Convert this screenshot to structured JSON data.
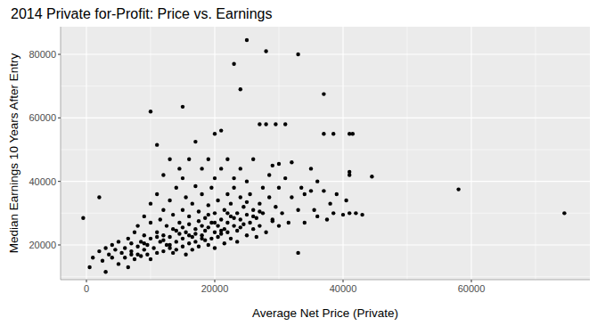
{
  "chart_data": {
    "type": "scatter",
    "title": "2014 Private for-Profit: Price vs. Earnings",
    "x_label": "Average Net Price (Private)",
    "y_label": "Median Earnings 10 Years After Entry",
    "color": "#000000",
    "marker": "circle",
    "grid": true,
    "xlim": [
      -4028,
      78472
    ],
    "ylim": [
      9060,
      88700
    ],
    "xticks": [
      0,
      20000,
      40000,
      60000
    ],
    "yticks": [
      20000,
      40000,
      60000,
      80000
    ],
    "x": [
      2000,
      2500,
      3000,
      3500,
      4000,
      4000,
      4500,
      5000,
      5000,
      5500,
      6000,
      6000,
      6500,
      6500,
      7000,
      7000,
      7500,
      7500,
      8000,
      8000,
      8000,
      8500,
      8500,
      9000,
      9000,
      9000,
      9500,
      9500,
      10000,
      10000,
      10000,
      10000,
      10500,
      11000,
      11000,
      11000,
      11500,
      11500,
      12000,
      12000,
      12000,
      12000,
      12500,
      12500,
      13000,
      13000,
      13000,
      13000,
      13500,
      13500,
      13500,
      14000,
      14000,
      14000,
      14500,
      14500,
      14500,
      15000,
      15000,
      15000,
      15000,
      15500,
      15500,
      15500,
      16000,
      16000,
      16000,
      16000,
      16500,
      16500,
      16500,
      17000,
      17000,
      17000,
      17000,
      17500,
      17500,
      17500,
      18000,
      18000,
      18000,
      18000,
      18500,
      18500,
      18500,
      19000,
      19000,
      19000,
      19000,
      19500,
      19500,
      19500,
      20000,
      20000,
      20000,
      20000,
      20000,
      20500,
      20500,
      20500,
      21000,
      21000,
      21000,
      21000,
      21500,
      21500,
      21500,
      22000,
      22000,
      22000,
      22000,
      22500,
      22500,
      22500,
      23000,
      23000,
      23000,
      23000,
      23500,
      23500,
      23500,
      24000,
      24000,
      24000,
      24000,
      24500,
      24500,
      25000,
      25000,
      25000,
      25000,
      25500,
      25500,
      26000,
      26000,
      26000,
      26500,
      26500,
      27000,
      27000,
      27000,
      27500,
      27500,
      28000,
      28000,
      28000,
      28500,
      28500,
      29000,
      29000,
      29500,
      29500,
      30000,
      30000,
      30000,
      30500,
      31000,
      31000,
      31500,
      32000,
      32000,
      33000,
      33000,
      33000,
      33500,
      34000,
      34000,
      35000,
      35000,
      35500,
      36000,
      36000,
      37000,
      37000,
      37000,
      37500,
      38000,
      38500,
      38500,
      39000,
      40000,
      40500,
      41000,
      41000,
      41000,
      41000,
      41500,
      42000,
      43000,
      44500,
      -500,
      1000,
      500,
      3000,
      2000,
      10000,
      15000,
      11000,
      58000,
      74500,
      12000,
      14000,
      16000,
      18000,
      20000,
      22000,
      24000,
      26000,
      9000,
      11000,
      13000,
      15000,
      17000,
      19000,
      21000,
      23000,
      25000,
      27000,
      29000,
      7000
    ],
    "values": [
      18000,
      15000,
      19000,
      17000,
      20000,
      16000,
      18500,
      14000,
      21000,
      17500,
      19000,
      16000,
      22000,
      13000,
      18000,
      20500,
      15500,
      24000,
      17000,
      19500,
      26000,
      21000,
      16500,
      18500,
      23000,
      29000,
      17000,
      20000,
      22000,
      15500,
      27000,
      33000,
      19000,
      24000,
      17500,
      36000,
      21000,
      28000,
      18000,
      23000,
      31000,
      42000,
      20000,
      26000,
      19000,
      22500,
      34000,
      47000,
      17500,
      25000,
      29500,
      21000,
      18500,
      38000,
      23500,
      27000,
      44000,
      19500,
      22000,
      31000,
      41000,
      24000,
      17000,
      35000,
      20500,
      26500,
      29000,
      47000,
      22500,
      18500,
      33000,
      25000,
      21000,
      38500,
      52500,
      27500,
      19500,
      30500,
      23000,
      26000,
      36000,
      44000,
      21500,
      28500,
      24500,
      20000,
      32500,
      25500,
      47000,
      22000,
      27000,
      38000,
      24000,
      30000,
      19000,
      41000,
      55000,
      26000,
      22500,
      34000,
      28000,
      23500,
      44000,
      56000,
      25000,
      31000,
      20500,
      27000,
      36000,
      24000,
      47000,
      29000,
      22000,
      33000,
      26000,
      38000,
      77000,
      41000,
      24500,
      30000,
      21000,
      28000,
      35000,
      69000,
      44000,
      26500,
      32000,
      23000,
      29500,
      84500,
      40000,
      27000,
      36000,
      25000,
      31000,
      47000,
      28500,
      22500,
      33000,
      58000,
      26000,
      38000,
      30000,
      81000,
      58000,
      24000,
      35000,
      42000,
      28000,
      45000,
      58000,
      32000,
      45500,
      26000,
      38000,
      30000,
      58000,
      41000,
      27000,
      35000,
      46000,
      80000,
      17500,
      31000,
      38000,
      36000,
      27000,
      37000,
      44000,
      31000,
      29000,
      40000,
      67500,
      55000,
      37000,
      28000,
      33000,
      55000,
      30000,
      36000,
      29500,
      34000,
      55000,
      43000,
      42000,
      30000,
      55000,
      30000,
      29500,
      41500,
      28500,
      16000,
      13000,
      11500,
      35000,
      62000,
      63500,
      51500,
      37500,
      30000,
      21500,
      24500,
      23000,
      22000,
      27000,
      30000,
      25500,
      29000,
      20500,
      22500,
      20000,
      25500,
      23500,
      29500,
      24500,
      28500,
      33500,
      30500,
      27500,
      17000
    ]
  }
}
